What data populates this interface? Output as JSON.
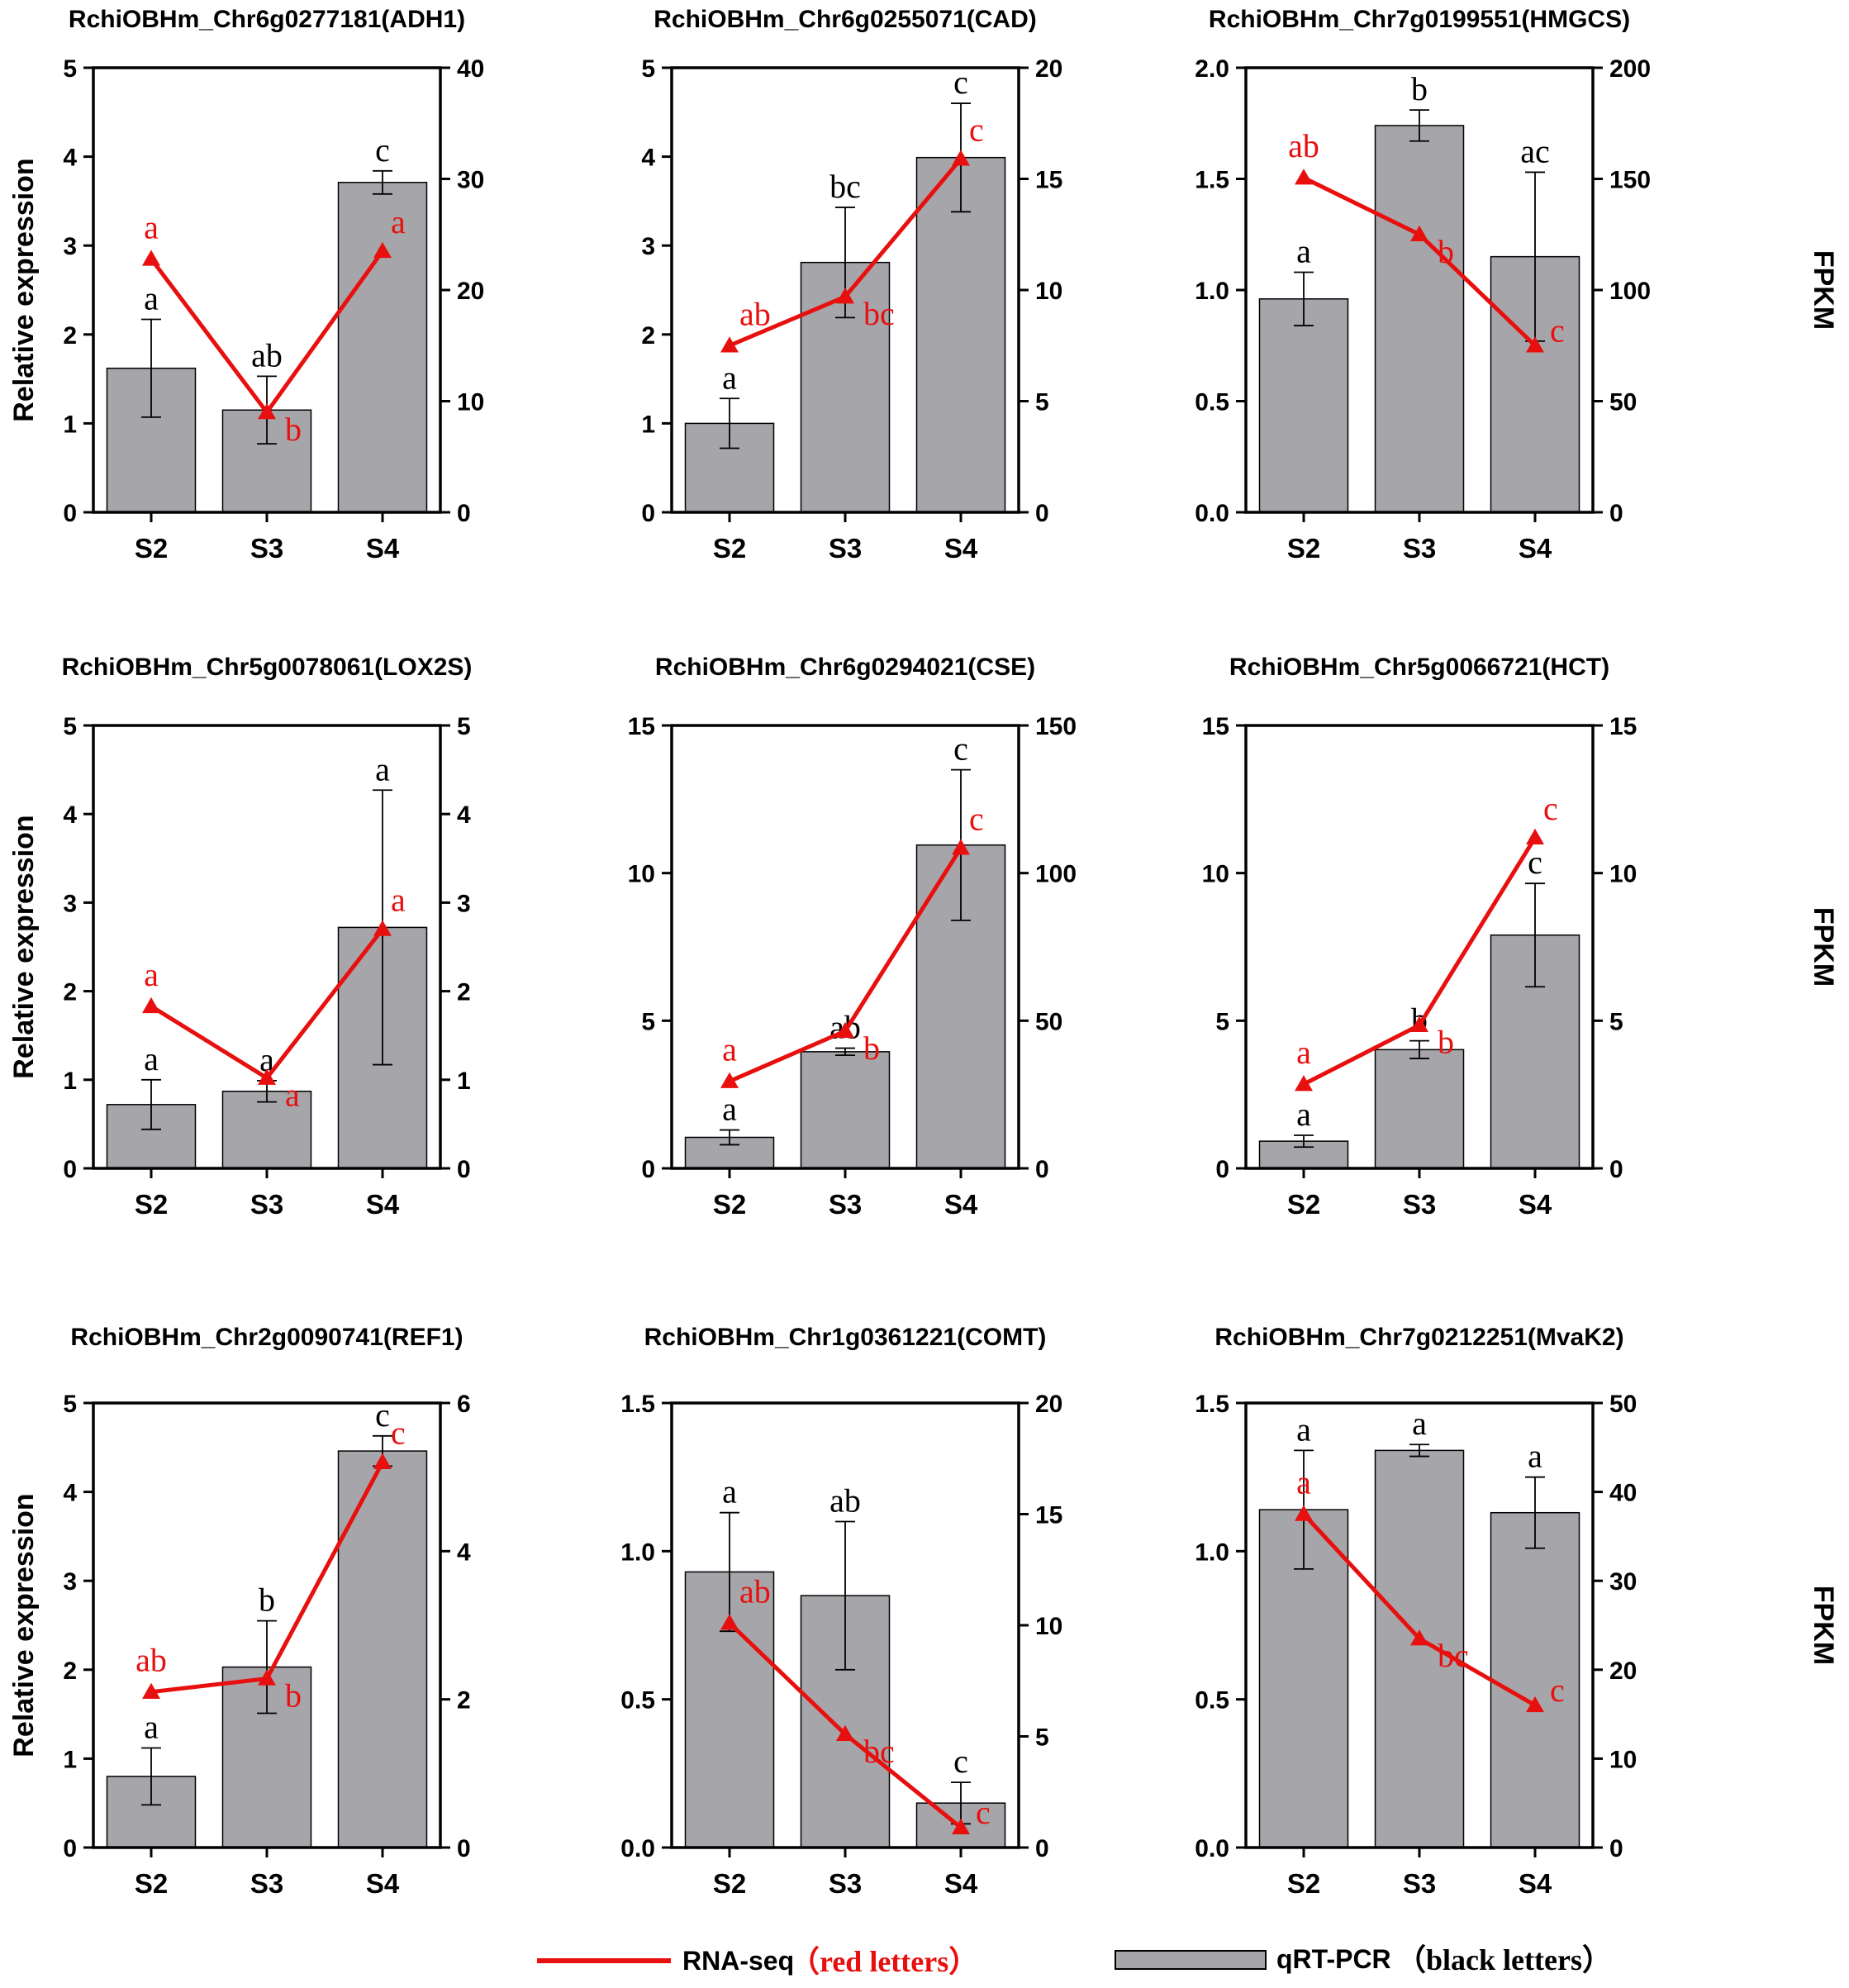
{
  "colors": {
    "bar": "#a6a6aa",
    "line": "#e8100f",
    "text": "#000000"
  },
  "axis_labels": {
    "left": "Relative expression",
    "right": "FPKM"
  },
  "legend": {
    "line_label": "RNA-seq",
    "line_note": "（red letters）",
    "bar_label": "qRT-PCR",
    "bar_note": "（black letters）"
  },
  "chart_data": [
    {
      "type": "bar+line",
      "title": "RchiOBHm_Chr6g0277181(ADH1)",
      "categories": [
        "S2",
        "S3",
        "S4"
      ],
      "left_ylim": [
        0,
        5
      ],
      "left_ticks": [
        "0",
        "1",
        "2",
        "3",
        "4",
        "5"
      ],
      "right_ylim": [
        0,
        40
      ],
      "right_ticks": [
        "0",
        "10",
        "20",
        "30",
        "40"
      ],
      "bar_values": [
        1.62,
        1.15,
        3.71
      ],
      "bar_errors": [
        0.55,
        0.38,
        0.13
      ],
      "bar_letters": [
        "a",
        "ab",
        "c"
      ],
      "line_values": [
        22.8,
        9.0,
        23.5
      ],
      "line_letters": [
        "a",
        "b",
        "a"
      ]
    },
    {
      "type": "bar+line",
      "title": "RchiOBHm_Chr6g0255071(CAD)",
      "categories": [
        "S2",
        "S3",
        "S4"
      ],
      "left_ylim": [
        0,
        5
      ],
      "left_ticks": [
        "0",
        "1",
        "2",
        "3",
        "4",
        "5"
      ],
      "right_ylim": [
        0,
        20
      ],
      "right_ticks": [
        "0",
        "5",
        "10",
        "15",
        "20"
      ],
      "bar_values": [
        1.0,
        2.81,
        3.99
      ],
      "bar_errors": [
        0.28,
        0.62,
        0.61
      ],
      "bar_letters": [
        "a",
        "bc",
        "c"
      ],
      "line_values": [
        7.5,
        9.7,
        15.9
      ],
      "line_letters": [
        "ab",
        "bc",
        "c"
      ]
    },
    {
      "type": "bar+line",
      "title": "RchiOBHm_Chr7g0199551(HMGCS)",
      "categories": [
        "S2",
        "S3",
        "S4"
      ],
      "left_ylim": [
        0,
        2.0
      ],
      "left_ticks": [
        "0.0",
        "0.5",
        "1.0",
        "1.5",
        "2.0"
      ],
      "right_ylim": [
        0,
        200
      ],
      "right_ticks": [
        "0",
        "50",
        "100",
        "150",
        "200"
      ],
      "bar_values": [
        0.96,
        1.74,
        1.15
      ],
      "bar_errors": [
        0.12,
        0.07,
        0.38
      ],
      "bar_letters": [
        "a",
        "b",
        "ac"
      ],
      "line_values": [
        150.5,
        125.0,
        75.0
      ],
      "line_letters": [
        "ab",
        "b",
        "c"
      ]
    },
    {
      "type": "bar+line",
      "title": "RchiOBHm_Chr5g0078061(LOX2S)",
      "categories": [
        "S2",
        "S3",
        "S4"
      ],
      "left_ylim": [
        0,
        5
      ],
      "left_ticks": [
        "0",
        "1",
        "2",
        "3",
        "4",
        "5"
      ],
      "right_ylim": [
        0,
        5
      ],
      "right_ticks": [
        "0",
        "1",
        "2",
        "3",
        "4",
        "5"
      ],
      "bar_values": [
        0.72,
        0.87,
        2.72
      ],
      "bar_errors": [
        0.28,
        0.12,
        1.55
      ],
      "bar_letters": [
        "a",
        "a",
        "a"
      ],
      "line_values": [
        1.83,
        1.02,
        2.7
      ],
      "line_letters": [
        "a",
        "a",
        "a"
      ]
    },
    {
      "type": "bar+line",
      "title": "RchiOBHm_Chr6g0294021(CSE)",
      "categories": [
        "S2",
        "S3",
        "S4"
      ],
      "left_ylim": [
        0,
        15
      ],
      "left_ticks": [
        "0",
        "5",
        "10",
        "15"
      ],
      "right_ylim": [
        0,
        150
      ],
      "right_ticks": [
        "0",
        "50",
        "100",
        "150"
      ],
      "bar_values": [
        1.05,
        3.95,
        10.95
      ],
      "bar_errors": [
        0.25,
        0.12,
        2.55
      ],
      "bar_letters": [
        "a",
        "ab",
        "c"
      ],
      "line_values": [
        29.5,
        46.5,
        108.5
      ],
      "line_letters": [
        "a",
        "b",
        "c"
      ]
    },
    {
      "type": "bar+line",
      "title": "RchiOBHm_Chr5g0066721(HCT)",
      "categories": [
        "S2",
        "S3",
        "S4"
      ],
      "left_ylim": [
        0,
        15
      ],
      "left_ticks": [
        "0",
        "5",
        "10",
        "15"
      ],
      "right_ylim": [
        0,
        15
      ],
      "right_ticks": [
        "0",
        "5",
        "10",
        "15"
      ],
      "bar_values": [
        0.92,
        4.02,
        7.9
      ],
      "bar_errors": [
        0.2,
        0.3,
        1.75
      ],
      "bar_letters": [
        "a",
        "b",
        "c"
      ],
      "line_values": [
        2.85,
        4.85,
        11.2
      ],
      "line_letters": [
        "a",
        "b",
        "c"
      ]
    },
    {
      "type": "bar+line",
      "title": "RchiOBHm_Chr2g0090741(REF1)",
      "categories": [
        "S2",
        "S3",
        "S4"
      ],
      "left_ylim": [
        0,
        5
      ],
      "left_ticks": [
        "0",
        "1",
        "2",
        "3",
        "4",
        "5"
      ],
      "right_ylim": [
        0,
        6
      ],
      "right_ticks": [
        "0",
        "2",
        "4",
        "6"
      ],
      "bar_values": [
        0.8,
        2.03,
        4.46
      ],
      "bar_errors": [
        0.32,
        0.52,
        0.17
      ],
      "bar_letters": [
        "a",
        "b",
        "c"
      ],
      "line_values": [
        2.1,
        2.28,
        5.2
      ],
      "line_letters": [
        "ab",
        "b",
        "c"
      ]
    },
    {
      "type": "bar+line",
      "title": "RchiOBHm_Chr1g0361221(COMT)",
      "categories": [
        "S2",
        "S3",
        "S4"
      ],
      "left_ylim": [
        0,
        1.5
      ],
      "left_ticks": [
        "0.0",
        "0.5",
        "1.0",
        "1.5"
      ],
      "right_ylim": [
        0,
        20
      ],
      "right_ticks": [
        "0",
        "5",
        "10",
        "15",
        "20"
      ],
      "bar_values": [
        0.93,
        0.85,
        0.15
      ],
      "bar_errors": [
        0.2,
        0.25,
        0.07
      ],
      "bar_letters": [
        "a",
        "ab",
        "c"
      ],
      "line_values": [
        10.1,
        5.1,
        0.9
      ],
      "line_letters": [
        "ab",
        "bc",
        "c"
      ]
    },
    {
      "type": "bar+line",
      "title": "RchiOBHm_Chr7g0212251(MvaK2)",
      "categories": [
        "S2",
        "S3",
        "S4"
      ],
      "left_ylim": [
        0,
        1.5
      ],
      "left_ticks": [
        "0.0",
        "0.5",
        "1.0",
        "1.5"
      ],
      "right_ylim": [
        0,
        50
      ],
      "right_ticks": [
        "0",
        "10",
        "20",
        "30",
        "40",
        "50"
      ],
      "bar_values": [
        1.14,
        1.34,
        1.13
      ],
      "bar_errors": [
        0.2,
        0.02,
        0.12
      ],
      "bar_letters": [
        "a",
        "a",
        "a"
      ],
      "line_values": [
        37.5,
        23.5,
        16.0
      ],
      "line_letters": [
        "a",
        "bc",
        "c"
      ]
    }
  ]
}
